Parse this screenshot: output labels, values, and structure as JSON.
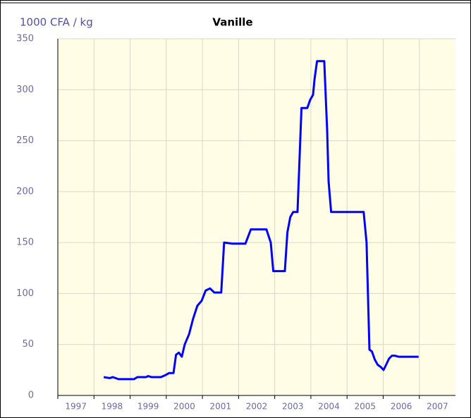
{
  "chart_data": {
    "type": "line",
    "title": "Vanille",
    "y_label": "1000 CFA / kg",
    "x": [
      1998.27,
      1998.44,
      1998.52,
      1998.68,
      1999.11,
      1999.2,
      1999.44,
      1999.5,
      1999.59,
      1999.85,
      1999.98,
      2000.08,
      2000.2,
      2000.27,
      2000.35,
      2000.43,
      2000.51,
      2000.63,
      2000.74,
      2000.86,
      2000.98,
      2001.09,
      2001.21,
      2001.33,
      2001.52,
      2001.6,
      2001.83,
      2002.19,
      2002.34,
      2002.77,
      2002.89,
      2002.96,
      2003.28,
      2003.35,
      2003.43,
      2003.51,
      2003.63,
      2003.74,
      2003.9,
      2003.98,
      2004.06,
      2004.1,
      2004.17,
      2004.37,
      2004.45,
      2004.49,
      2004.56,
      2005.46,
      2005.54,
      2005.62,
      2005.69,
      2005.77,
      2005.85,
      2005.93,
      2006.01,
      2006.08,
      2006.16,
      2006.24,
      2006.32,
      2006.43,
      2006.98
    ],
    "values": [
      18,
      17,
      18,
      16,
      16,
      18,
      18,
      19,
      18,
      18,
      20,
      22,
      22,
      40,
      42,
      38,
      50,
      60,
      75,
      88,
      93,
      103,
      105,
      101,
      101,
      150,
      149,
      149,
      163,
      163,
      150,
      122,
      122,
      160,
      175,
      180,
      180,
      282,
      282,
      290,
      295,
      310,
      328,
      328,
      260,
      210,
      180,
      180,
      150,
      45,
      43,
      35,
      30,
      28,
      25,
      30,
      36,
      39,
      39,
      38,
      38
    ],
    "color": "#0000ff",
    "xlim": [
      1997,
      2008
    ],
    "xticks": [
      1997,
      1998,
      1999,
      2000,
      2001,
      2002,
      2003,
      2004,
      2005,
      2006,
      2007
    ],
    "ylim": [
      0,
      350
    ],
    "yticks": [
      0,
      50,
      100,
      150,
      200,
      250,
      300,
      350
    ],
    "grid": true
  }
}
